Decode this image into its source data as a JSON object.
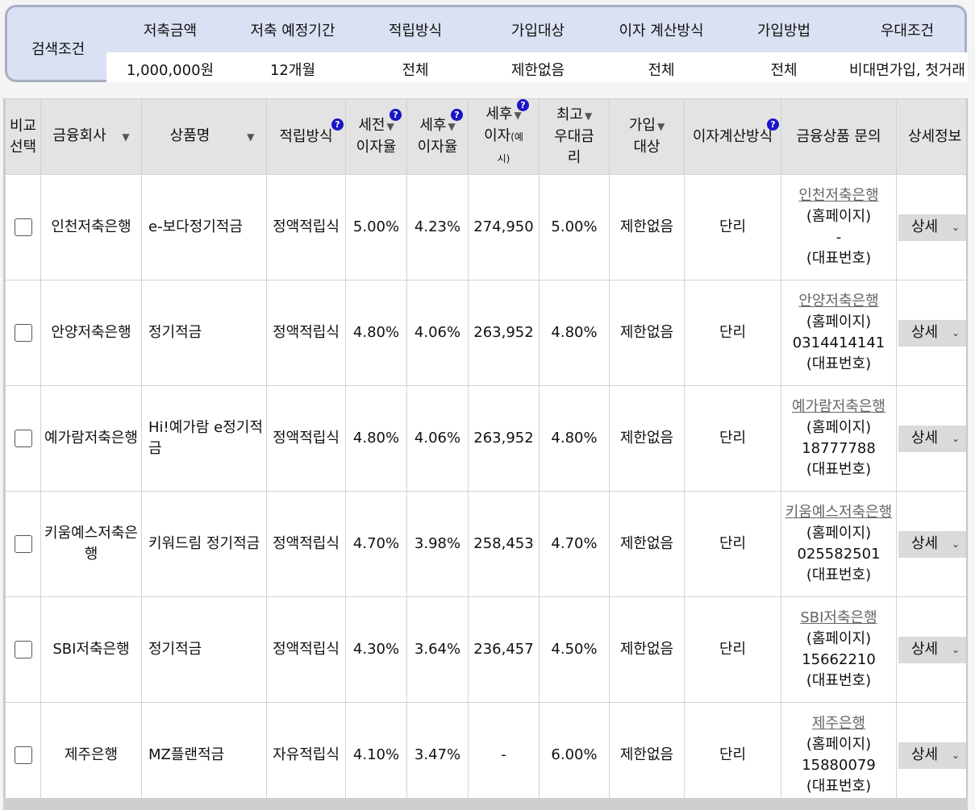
{
  "conditions": {
    "label": "검색조건",
    "items": [
      {
        "header": "저축금액",
        "value": "1,000,000원"
      },
      {
        "header": "저축 예정기간",
        "value": "12개월"
      },
      {
        "header": "적립방식",
        "value": "전체"
      },
      {
        "header": "가입대상",
        "value": "제한없음"
      },
      {
        "header": "이자 계산방식",
        "value": "전체"
      },
      {
        "header": "가입방법",
        "value": "전체"
      },
      {
        "header": "우대조건",
        "value": "비대면가입, 첫거래"
      }
    ]
  },
  "table": {
    "headers": {
      "compare_1": "비교",
      "compare_2": "선택",
      "company": "금융회사",
      "product": "상품명",
      "method": "적립방식",
      "pretax_1": "세전",
      "pretax_2": "이자율",
      "aftertax_1": "세후",
      "aftertax_2": "이자율",
      "interest_1": "세후",
      "interest_2": "이자",
      "interest_small": "(예시)",
      "interest_small_1": "(예",
      "interest_small_2": "시)",
      "max_1": "최고",
      "max_2": "우대금",
      "max_3": "리",
      "target_1": "가입",
      "target_2": "대상",
      "calc": "이자계산방식",
      "inquiry": "금융상품 문의",
      "detail": "상세정보"
    },
    "help_glyph": "?",
    "sort_glyph": "▼",
    "rows": [
      {
        "company": "인천저축은행",
        "product": "e-보다정기적금",
        "method": "정액적립식",
        "pretax": "5.00%",
        "aftertax": "4.23%",
        "interest": "274,950",
        "max": "5.00%",
        "target": "제한없음",
        "calc": "단리",
        "inq_bank": "인천저축은행",
        "inq_home": "(홈페이지)",
        "inq_phone": "-",
        "inq_rep": "(대표번호)",
        "detail": "상세"
      },
      {
        "company": "안양저축은행",
        "product": "정기적금",
        "method": "정액적립식",
        "pretax": "4.80%",
        "aftertax": "4.06%",
        "interest": "263,952",
        "max": "4.80%",
        "target": "제한없음",
        "calc": "단리",
        "inq_bank": "안양저축은행",
        "inq_home": "(홈페이지)",
        "inq_phone": "0314414141",
        "inq_rep": "(대표번호)",
        "detail": "상세"
      },
      {
        "company": "예가람저축은행",
        "product": "Hi!예가람 e정기적금",
        "method": "정액적립식",
        "pretax": "4.80%",
        "aftertax": "4.06%",
        "interest": "263,952",
        "max": "4.80%",
        "target": "제한없음",
        "calc": "단리",
        "inq_bank": "예가람저축은행",
        "inq_home": "(홈페이지)",
        "inq_phone": "18777788",
        "inq_rep": "(대표번호)",
        "detail": "상세"
      },
      {
        "company": "키움예스저축은행",
        "product": "키워드림 정기적금",
        "method": "정액적립식",
        "pretax": "4.70%",
        "aftertax": "3.98%",
        "interest": "258,453",
        "max": "4.70%",
        "target": "제한없음",
        "calc": "단리",
        "inq_bank": "키움예스저축은행",
        "inq_home": "(홈페이지)",
        "inq_phone": "025582501",
        "inq_rep": "(대표번호)",
        "detail": "상세"
      },
      {
        "company": "SBI저축은행",
        "product": "정기적금",
        "method": "정액적립식",
        "pretax": "4.30%",
        "aftertax": "3.64%",
        "interest": "236,457",
        "max": "4.50%",
        "target": "제한없음",
        "calc": "단리",
        "inq_bank": "SBI저축은행",
        "inq_home": "(홈페이지)",
        "inq_phone": "15662210",
        "inq_rep": "(대표번호)",
        "detail": "상세"
      },
      {
        "company": "제주은행",
        "product": "MZ플랜적금",
        "method": "자유적립식",
        "pretax": "4.10%",
        "aftertax": "3.47%",
        "interest": "-",
        "max": "6.00%",
        "target": "제한없음",
        "calc": "단리",
        "inq_bank": "제주은행",
        "inq_home": "(홈페이지)",
        "inq_phone": "15880079",
        "inq_rep": "(대표번호)",
        "detail": "상세"
      }
    ]
  }
}
